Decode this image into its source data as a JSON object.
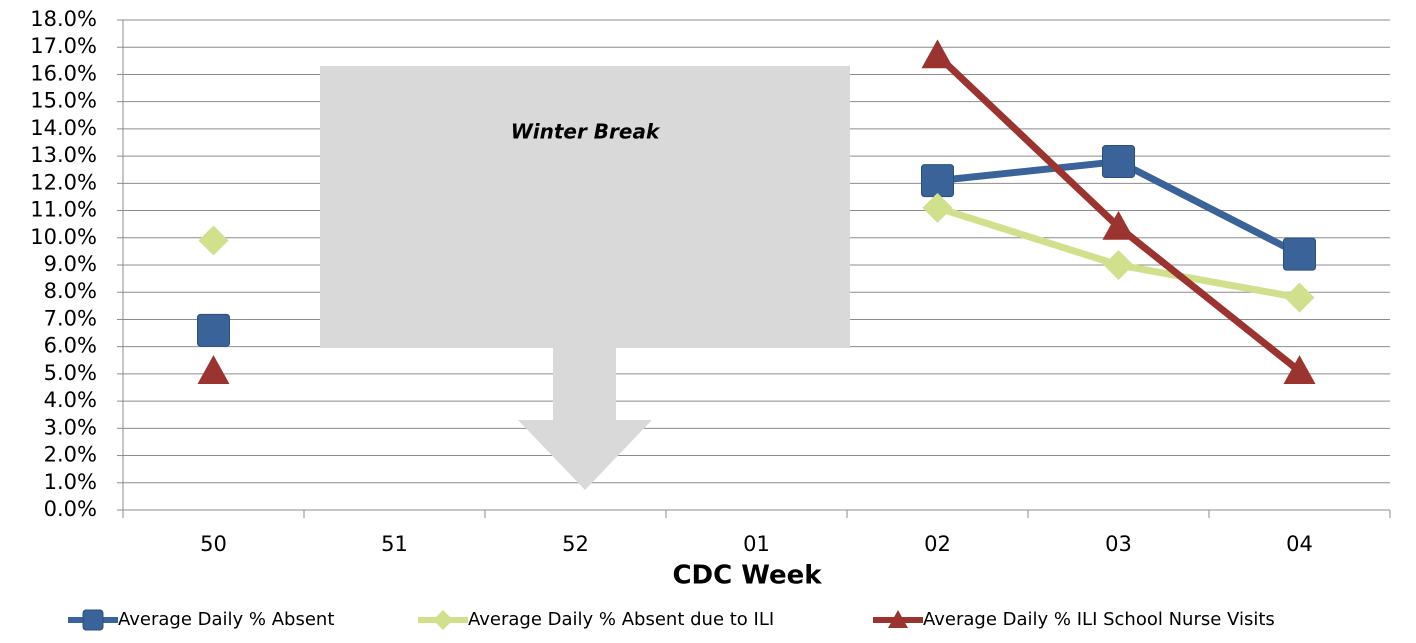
{
  "chart_data": {
    "type": "line",
    "x_label": "CDC Week",
    "annotation": "Winter Break",
    "categories": [
      "50",
      "51",
      "52",
      "01",
      "02",
      "03",
      "04"
    ],
    "series": [
      {
        "name": "Average Daily % Absent",
        "color": "#3a6499",
        "marker": "square",
        "values": [
          6.6,
          null,
          null,
          null,
          12.1,
          12.8,
          9.4
        ]
      },
      {
        "name": "Average Daily % Absent due to ILI",
        "color": "#d1e08c",
        "marker": "diamond",
        "values": [
          9.9,
          null,
          null,
          null,
          11.1,
          9.0,
          7.8
        ]
      },
      {
        "name": "Average Daily % ILI School Nurse Visits",
        "color": "#9b3330",
        "marker": "triangle",
        "values": [
          5.1,
          null,
          null,
          null,
          16.7,
          10.4,
          5.1
        ]
      }
    ],
    "ylim": [
      0,
      18
    ],
    "yticks": [
      {
        "value": 0,
        "label": "0.0%"
      },
      {
        "value": 1,
        "label": "1.0%"
      },
      {
        "value": 2,
        "label": "2.0%"
      },
      {
        "value": 3,
        "label": "3.0%"
      },
      {
        "value": 4,
        "label": "4.0%"
      },
      {
        "value": 5,
        "label": "5.0%"
      },
      {
        "value": 6,
        "label": "6.0%"
      },
      {
        "value": 7,
        "label": "7.0%"
      },
      {
        "value": 8,
        "label": "8.0%"
      },
      {
        "value": 9,
        "label": "9.0%"
      },
      {
        "value": 10,
        "label": "10.0%"
      },
      {
        "value": 11,
        "label": "11.0%"
      },
      {
        "value": 12,
        "label": "12.0%"
      },
      {
        "value": 13,
        "label": "13.0%"
      },
      {
        "value": 14,
        "label": "14.0%"
      },
      {
        "value": 15,
        "label": "15.0%"
      },
      {
        "value": 16,
        "label": "16.0%"
      },
      {
        "value": 17,
        "label": "17.0%"
      },
      {
        "value": 18,
        "label": "18.0%"
      }
    ],
    "grid": true
  }
}
